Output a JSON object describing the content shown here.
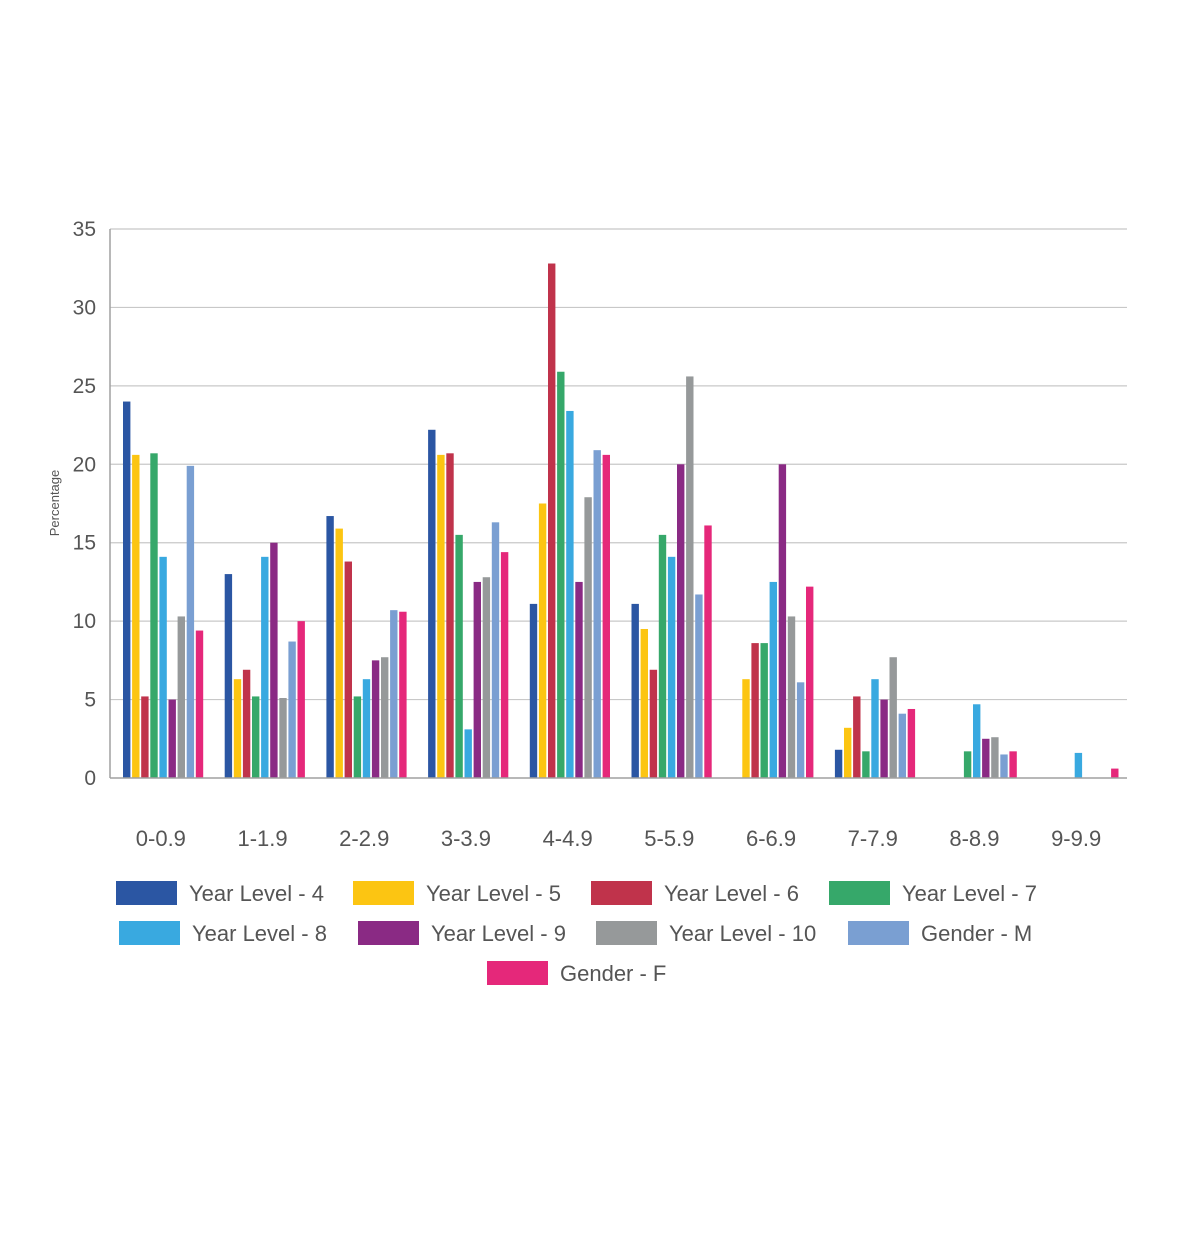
{
  "chart_data": {
    "type": "bar",
    "title": "",
    "xlabel": "",
    "ylabel": "Percentage",
    "ylim": [
      0,
      35
    ],
    "yticks": [
      0,
      5,
      10,
      15,
      20,
      25,
      30,
      35
    ],
    "grid": true,
    "legend_position": "bottom",
    "categories": [
      "0-0.9",
      "1-1.9",
      "2-2.9",
      "3-3.9",
      "4-4.9",
      "5-5.9",
      "6-6.9",
      "7-7.9",
      "8-8.9",
      "9-9.9"
    ],
    "series": [
      {
        "name": "Year Level - 4",
        "color": "#2b56a3",
        "values": [
          24.0,
          13.0,
          16.7,
          22.2,
          11.1,
          11.1,
          0,
          1.8,
          0,
          0
        ]
      },
      {
        "name": "Year Level - 5",
        "color": "#fcc512",
        "values": [
          20.6,
          6.3,
          15.9,
          20.6,
          17.5,
          9.5,
          6.3,
          3.2,
          0,
          0
        ]
      },
      {
        "name": "Year Level - 6",
        "color": "#c0334b",
        "values": [
          5.2,
          6.9,
          13.8,
          20.7,
          32.8,
          6.9,
          8.6,
          5.2,
          0,
          0
        ]
      },
      {
        "name": "Year Level - 7",
        "color": "#36a86a",
        "values": [
          20.7,
          5.2,
          5.2,
          15.5,
          25.9,
          15.5,
          8.6,
          1.7,
          1.7,
          0
        ]
      },
      {
        "name": "Year Level - 8",
        "color": "#39a9e0",
        "values": [
          14.1,
          14.1,
          6.3,
          3.1,
          23.4,
          14.1,
          12.5,
          6.3,
          4.7,
          1.6
        ]
      },
      {
        "name": "Year Level - 9",
        "color": "#8a2a84",
        "values": [
          5.0,
          15.0,
          7.5,
          12.5,
          12.5,
          20.0,
          20.0,
          5.0,
          2.5,
          0
        ]
      },
      {
        "name": "Year Level - 10",
        "color": "#96999a",
        "values": [
          10.3,
          5.1,
          7.7,
          12.8,
          17.9,
          25.6,
          10.3,
          7.7,
          2.6,
          0
        ]
      },
      {
        "name": "Gender - M",
        "color": "#7a9fd2",
        "values": [
          19.9,
          8.7,
          10.7,
          16.3,
          20.9,
          11.7,
          6.1,
          4.1,
          1.5,
          0
        ]
      },
      {
        "name": "Gender - F",
        "color": "#e5287a",
        "values": [
          9.4,
          10.0,
          10.6,
          14.4,
          20.6,
          16.1,
          12.2,
          4.4,
          1.7,
          0.6
        ]
      }
    ]
  }
}
